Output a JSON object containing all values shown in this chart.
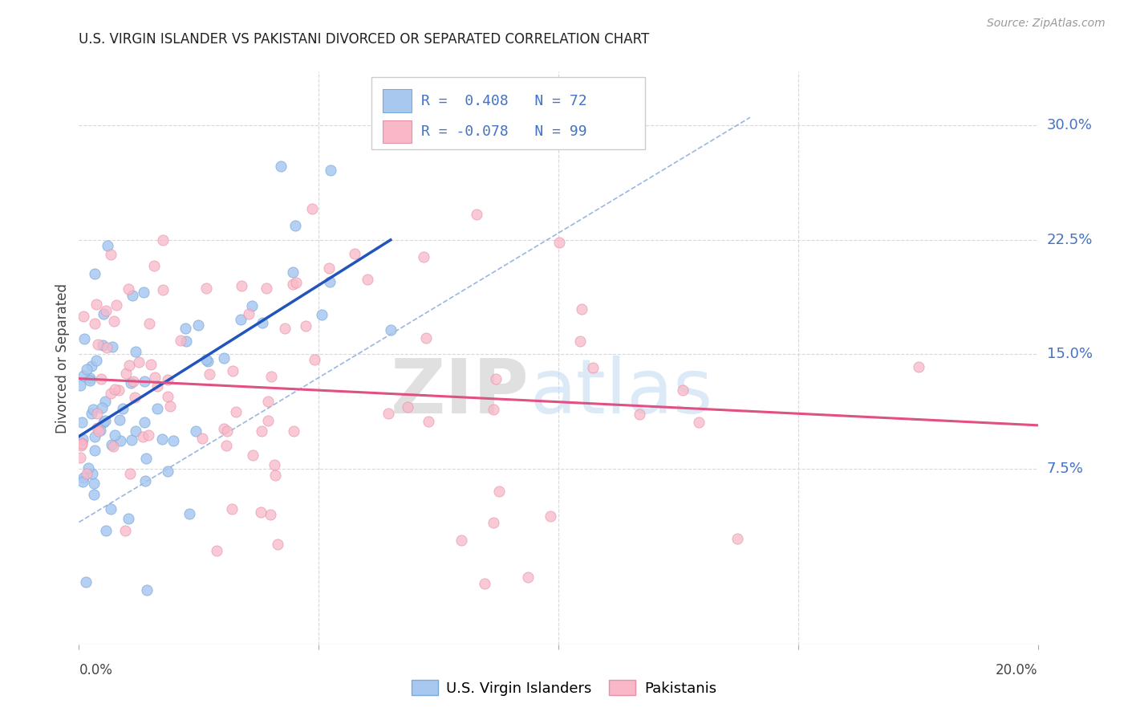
{
  "title": "U.S. VIRGIN ISLANDER VS PAKISTANI DIVORCED OR SEPARATED CORRELATION CHART",
  "source": "Source: ZipAtlas.com",
  "ylabel": "Divorced or Separated",
  "ytick_values": [
    0.075,
    0.15,
    0.225,
    0.3
  ],
  "xlim": [
    0.0,
    0.2
  ],
  "ylim": [
    -0.04,
    0.335
  ],
  "blue_dot_color": "#a8c8f0",
  "blue_dot_edge": "#7aaad8",
  "pink_dot_color": "#f8b8c8",
  "pink_dot_edge": "#e890a8",
  "blue_line_color": "#2255bb",
  "pink_line_color": "#e05080",
  "dashed_line_color": "#88aadd",
  "grid_color": "#d8d8d8",
  "ytick_color": "#4472c4",
  "title_color": "#222222",
  "source_color": "#999999",
  "R_blue": 0.408,
  "N_blue": 72,
  "R_pink": -0.078,
  "N_pink": 99,
  "watermark_zip_color": "#c8c8c8",
  "watermark_atlas_color": "#c0d8f0",
  "seed": 42
}
